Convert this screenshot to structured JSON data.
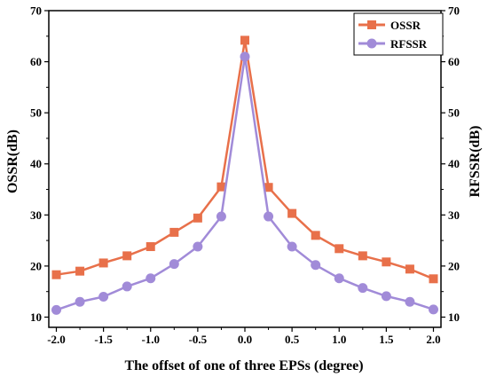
{
  "chart_data": {
    "type": "line",
    "xlabel": "The offset of one of three EPSs (degree)",
    "ylabel": "OSSR(dB)",
    "ylabel_right": "RFSSR(dB)",
    "xlim": [
      -2.08,
      2.08
    ],
    "ylim": [
      8,
      70
    ],
    "xticks": [
      "-2.0",
      "-1.5",
      "-1.0",
      "-0.5",
      "0.0",
      "0.5",
      "1.0",
      "1.5",
      "2.0"
    ],
    "yticks": [
      "10",
      "20",
      "30",
      "40",
      "50",
      "60",
      "70"
    ],
    "grid": false,
    "legend_position": "top-right",
    "x": [
      -2.0,
      -1.75,
      -1.5,
      -1.25,
      -1.0,
      -0.75,
      -0.5,
      -0.25,
      0.0,
      0.25,
      0.5,
      0.75,
      1.0,
      1.25,
      1.5,
      1.75,
      2.0
    ],
    "series": [
      {
        "name": "OSSR",
        "color": "#e8704a",
        "marker": "square",
        "values": [
          18.3,
          19.0,
          20.6,
          22.0,
          23.8,
          26.6,
          29.4,
          35.5,
          64.2,
          35.4,
          30.3,
          26.0,
          23.4,
          22.0,
          20.8,
          19.4,
          17.5
        ]
      },
      {
        "name": "RFSSR",
        "color": "#a18bd8",
        "marker": "circle",
        "values": [
          11.4,
          13.0,
          14.0,
          16.0,
          17.6,
          20.4,
          23.8,
          29.7,
          61.0,
          29.7,
          23.8,
          20.2,
          17.6,
          15.7,
          14.1,
          13.0,
          11.5
        ]
      }
    ]
  }
}
